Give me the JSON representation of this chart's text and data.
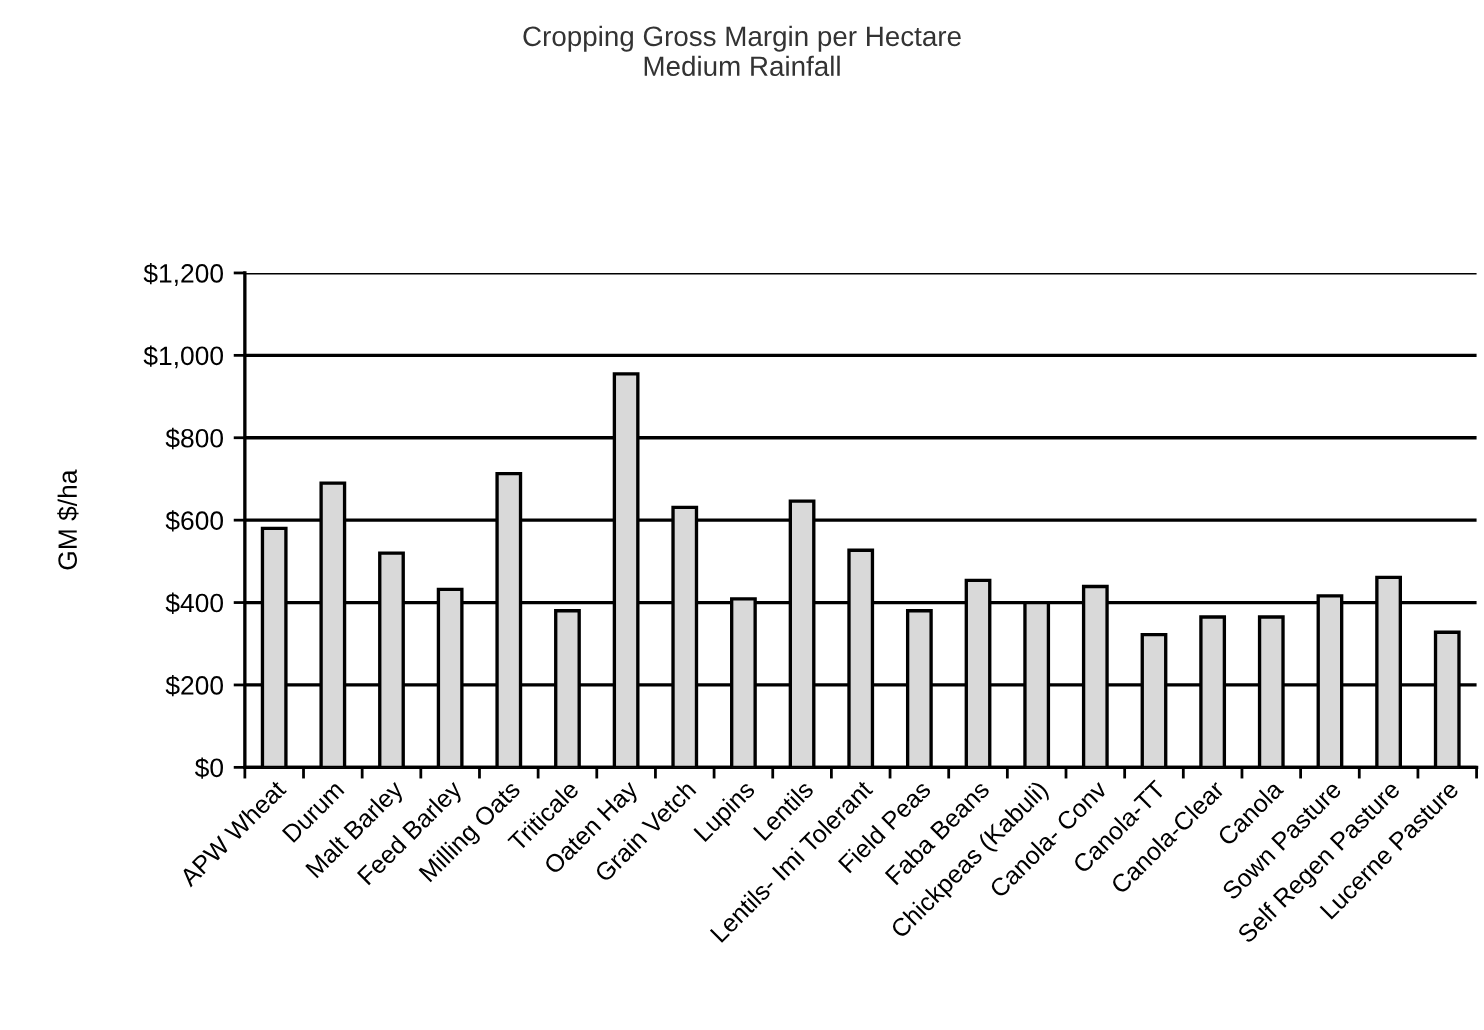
{
  "chart_data": {
    "type": "bar",
    "title": "Cropping Gross Margin per Hectare\nMedium Rainfall",
    "ylabel": "GM $/ha",
    "categories": [
      "APW Wheat",
      "Durum",
      "Malt Barley",
      "Feed Barley",
      "Milling Oats",
      "Triticale",
      "Oaten Hay",
      "Grain Vetch",
      "Lupins",
      "Lentils",
      "Lentils- Imi Tolerant",
      "Field Peas",
      "Faba Beans",
      "Chickpeas (Kabuli)",
      "Canola- Conv",
      "Canola-TT",
      "Canola-Clear",
      "Canola",
      "Sown Pasture",
      "Self Regen Pasture",
      "Lucerne Pasture"
    ],
    "values": [
      580,
      690,
      520,
      432,
      713,
      380,
      955,
      631,
      409,
      646,
      527,
      380,
      454,
      400,
      439,
      322,
      365,
      365,
      416,
      461,
      328
    ],
    "color": "#d9d9d9",
    "ylim": [
      0,
      1200
    ],
    "yticks": [
      {
        "value": 0,
        "label": "$0"
      },
      {
        "value": 200,
        "label": "$200"
      },
      {
        "value": 400,
        "label": "$400"
      },
      {
        "value": 600,
        "label": "$600"
      },
      {
        "value": 800,
        "label": "$800"
      },
      {
        "value": 1000,
        "label": "$1,000"
      },
      {
        "value": 1200,
        "label": "$1,200"
      }
    ],
    "grid": "y",
    "legend": false
  }
}
